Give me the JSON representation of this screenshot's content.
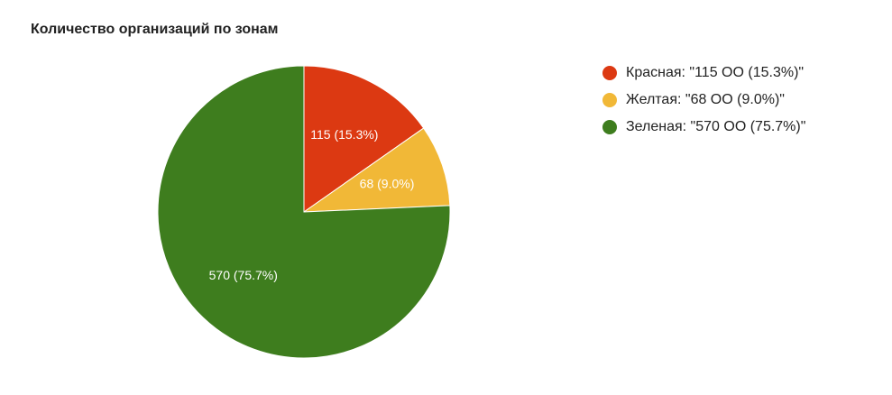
{
  "chart_data": {
    "type": "pie",
    "title": "Количество организаций по зонам",
    "slices": [
      {
        "name": "Красная",
        "value": 115,
        "percent": 15.3,
        "color": "#dc3912",
        "slice_label": "115 (15.3%)",
        "legend_label": "Красная: \"115 ОО (15.3%)\""
      },
      {
        "name": "Желтая",
        "value": 68,
        "percent": 9.0,
        "color": "#f1b837",
        "slice_label": "68 (9.0%)",
        "legend_label": "Желтая: \"68 ОО (9.0%)\""
      },
      {
        "name": "Зеленая",
        "value": 570,
        "percent": 75.7,
        "color": "#3e7d1e",
        "slice_label": "570 (75.7%)",
        "legend_label": "Зеленая: \"570 ОО (75.7%)\""
      }
    ],
    "legend_position": "right"
  }
}
